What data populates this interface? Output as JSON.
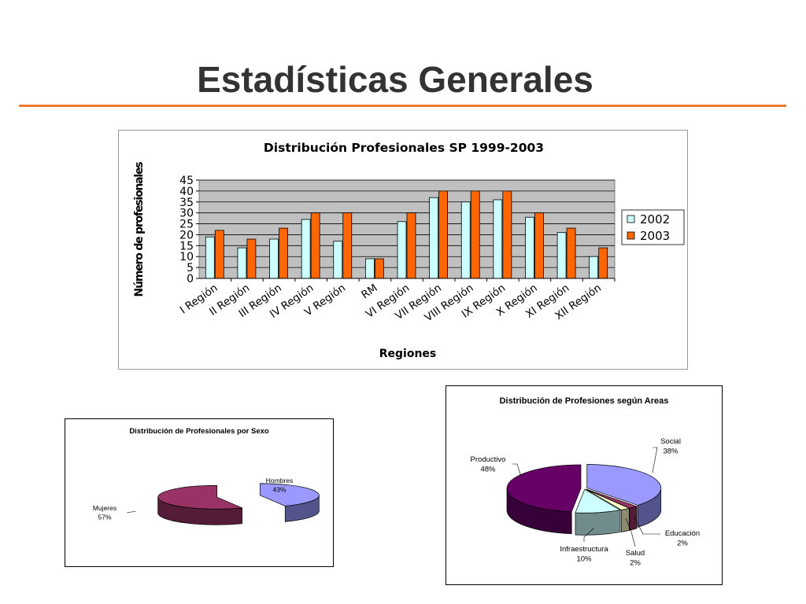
{
  "slide": {
    "title": "Estadísticas Generales",
    "accent_color": "#ee7b30",
    "title_color": "#333333"
  },
  "chart_data": [
    {
      "type": "bar",
      "title": "Distribución Profesionales SP 1999-2003",
      "xlabel": "Regiones",
      "ylabel": "Número de profesionales",
      "ylim": [
        0,
        45
      ],
      "yticks": [
        "0",
        "5",
        "10",
        "15",
        "20",
        "25",
        "30",
        "35",
        "40",
        "45"
      ],
      "grid": true,
      "legend": "right",
      "plot_background": "#c0c0c0",
      "categories": [
        "I Región",
        "II Región",
        "III Región",
        "IV Región",
        "V Región",
        "RM",
        "VI Región",
        "VII Región",
        "VIII Región",
        "IX Región",
        "X Región",
        "XI Región",
        "XII Región"
      ],
      "series": [
        {
          "name": "2002",
          "color": "#ccffff",
          "values": [
            19,
            14,
            18,
            27,
            17,
            9,
            26,
            37,
            35,
            36,
            28,
            21,
            10
          ]
        },
        {
          "name": "2003",
          "color": "#ff6600",
          "values": [
            22,
            18,
            23,
            30,
            30,
            9,
            30,
            40,
            40,
            40,
            30,
            23,
            14
          ]
        }
      ]
    },
    {
      "type": "pie",
      "title": "Distribución de Profesionales por Sexo",
      "slices": [
        {
          "label": "Hombres",
          "percent_label": "43%",
          "value": 43,
          "color": "#9999ff"
        },
        {
          "label": "Mujeres",
          "percent_label": "57%",
          "value": 57,
          "color": "#993366"
        }
      ]
    },
    {
      "type": "pie",
      "title": "Distribución de Profesiones según Areas",
      "slices": [
        {
          "label": "Social",
          "percent_label": "38%",
          "value": 38,
          "color": "#9999ff"
        },
        {
          "label": "Educación",
          "percent_label": "2%",
          "value": 2,
          "color": "#993366"
        },
        {
          "label": "Salud",
          "percent_label": "2%",
          "value": 2,
          "color": "#ffffcc"
        },
        {
          "label": "Infraestructura",
          "percent_label": "10%",
          "value": 10,
          "color": "#ccffff"
        },
        {
          "label": "Productivo",
          "percent_label": "48%",
          "value": 48,
          "color": "#660066"
        }
      ]
    }
  ]
}
